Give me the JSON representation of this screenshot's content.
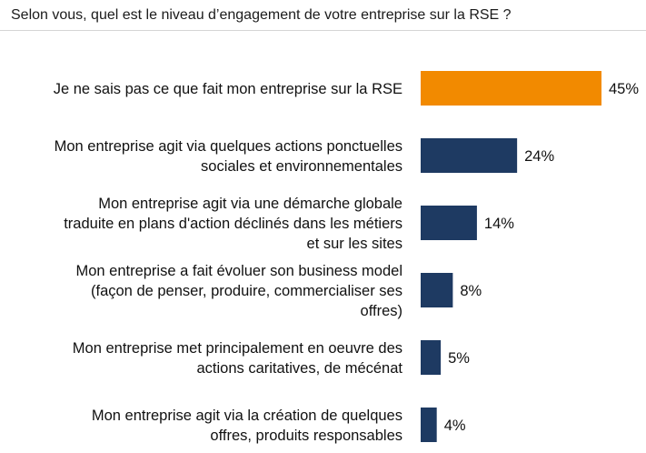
{
  "question": "Selon vous, quel est le niveau d’engagement de votre entreprise sur la RSE ?",
  "chart_data": {
    "type": "bar",
    "orientation": "horizontal",
    "title": "Selon vous, quel est le niveau d’engagement de votre entreprise sur la RSE ?",
    "value_suffix": "%",
    "categories": [
      [
        "Je ne sais pas ce que fait mon entreprise sur la RSE"
      ],
      [
        "Mon entreprise agit via quelques actions ponctuelles",
        "sociales et environnementales"
      ],
      [
        "Mon entreprise agit via une démarche globale",
        "traduite en plans d'action déclinés dans les métiers",
        "et sur les sites"
      ],
      [
        "Mon entreprise a fait évoluer son business model",
        "(façon de penser, produire, commercialiser ses",
        "offres)"
      ],
      [
        "Mon entreprise met principalement en oeuvre des",
        "actions caritatives, de mécénat"
      ],
      [
        "Mon entreprise agit via la création de quelques",
        "offres, produits responsables"
      ]
    ],
    "values": [
      45,
      24,
      14,
      8,
      5,
      4
    ],
    "labels": [
      "45%",
      "24%",
      "14%",
      "8%",
      "5%",
      "4%"
    ],
    "colors": [
      "#F28A00",
      "#1E3A62",
      "#1E3A62",
      "#1E3A62",
      "#1E3A62",
      "#1E3A62"
    ],
    "xlim": [
      0,
      45
    ],
    "grid": false,
    "legend": "none"
  }
}
